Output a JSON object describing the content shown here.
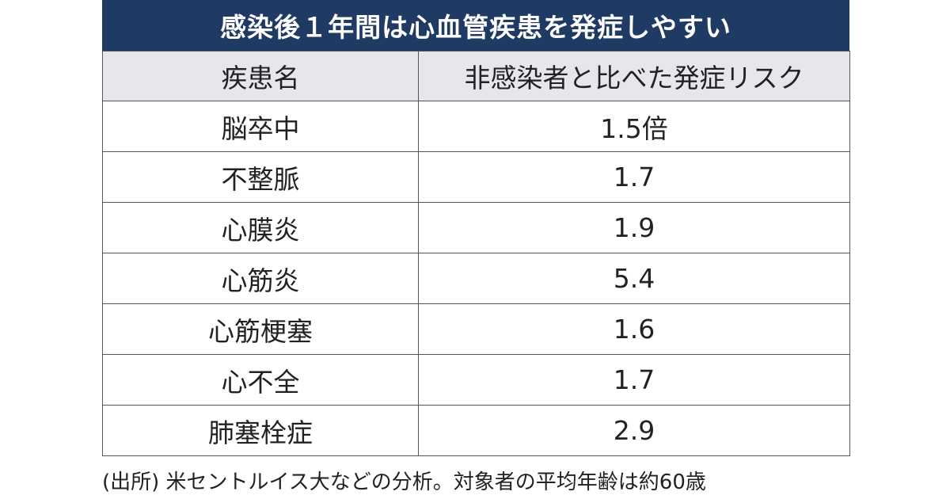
{
  "table": {
    "title": "感染後１年間は心血管疾患を発症しやすい",
    "headers": [
      "疾患名",
      "非感染者と比べた発症リスク"
    ],
    "rows": [
      {
        "disease": "脳卒中",
        "risk": "1.5倍"
      },
      {
        "disease": "不整脈",
        "risk": "1.7"
      },
      {
        "disease": "心膜炎",
        "risk": "1.9"
      },
      {
        "disease": "心筋炎",
        "risk": "5.4"
      },
      {
        "disease": "心筋梗塞",
        "risk": "1.6"
      },
      {
        "disease": "心不全",
        "risk": "1.7"
      },
      {
        "disease": "肺塞栓症",
        "risk": "2.9"
      }
    ]
  },
  "footnote": "(出所) 米セントルイス大などの分析。対象者の平均年齢は約60歳",
  "colors": {
    "title_background": "#1f3b64",
    "header_background": "#e6e7ea"
  }
}
